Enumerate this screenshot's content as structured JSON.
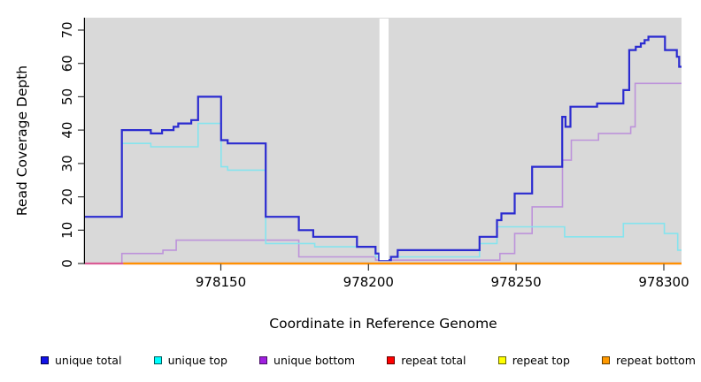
{
  "chart_data": {
    "type": "line",
    "subtype": "step-coverage-plot",
    "title": "",
    "xlabel": "Coordinate in Reference Genome",
    "ylabel": "Read Coverage Depth",
    "xlim": [
      978104,
      978306
    ],
    "ylim": [
      0,
      70
    ],
    "x_ticks": [
      978150,
      978200,
      978250,
      978300
    ],
    "y_ticks": [
      0,
      10,
      20,
      30,
      40,
      50,
      60,
      70
    ],
    "grid": false,
    "plot_bg_color": "#d9d9d9",
    "axis_color": "#000000",
    "gap_mask": {
      "x_start": 978203.7,
      "x_end": 978206.8,
      "color": "#ffffff"
    },
    "legend": {
      "position": "bottom",
      "entries": [
        {
          "label": "unique total",
          "fill": "#1212e8",
          "border": "#00004d"
        },
        {
          "label": "unique top",
          "fill": "#00ffff",
          "border": "#005c5c"
        },
        {
          "label": "unique bottom",
          "fill": "#a01fe0",
          "border": "#470f63"
        },
        {
          "label": "repeat total",
          "fill": "#ff0000",
          "border": "#660000"
        },
        {
          "label": "repeat top",
          "fill": "#ffff00",
          "border": "#666600"
        },
        {
          "label": "repeat bottom",
          "fill": "#ff9900",
          "border": "#663d00"
        }
      ]
    },
    "series": [
      {
        "name": "unique bottom",
        "line_color": "#bd93da",
        "width": 1.6,
        "points": [
          [
            978104,
            0
          ],
          [
            978116.5,
            3
          ],
          [
            978130.4,
            4
          ],
          [
            978134.9,
            7
          ],
          [
            978176.4,
            2
          ],
          [
            978202.4,
            1
          ],
          [
            978244.5,
            3
          ],
          [
            978249.5,
            9
          ],
          [
            978255.4,
            17
          ],
          [
            978265.7,
            31
          ],
          [
            978268.7,
            37
          ],
          [
            978277.9,
            39
          ],
          [
            978288.8,
            41
          ],
          [
            978290.3,
            54
          ],
          [
            978306,
            54
          ]
        ]
      },
      {
        "name": "unique top",
        "line_color": "#85e4ee",
        "width": 1.6,
        "points": [
          [
            978104,
            14
          ],
          [
            978116.5,
            36
          ],
          [
            978126.3,
            35
          ],
          [
            978142.3,
            42
          ],
          [
            978150.1,
            29
          ],
          [
            978152.3,
            28
          ],
          [
            978165.2,
            6
          ],
          [
            978181.8,
            5
          ],
          [
            978202.4,
            2
          ],
          [
            978203.6,
            1
          ],
          [
            978207.6,
            2
          ],
          [
            978237.6,
            6
          ],
          [
            978243.5,
            11
          ],
          [
            978266.4,
            8
          ],
          [
            978286.3,
            12
          ],
          [
            978300.2,
            9
          ],
          [
            978304.7,
            4
          ],
          [
            978306,
            4
          ]
        ]
      },
      {
        "name": "repeat total",
        "line_color": "#da5b95",
        "width": 2.2,
        "points": [
          [
            978104,
            0
          ],
          [
            978306,
            0
          ]
        ]
      },
      {
        "name": "repeat top",
        "line_color": "#f2e641",
        "width": 1.6,
        "points": [
          [
            978117,
            0
          ],
          [
            978306,
            0
          ]
        ]
      },
      {
        "name": "repeat bottom",
        "line_color": "#ff9100",
        "width": 2.2,
        "points": [
          [
            978117,
            0
          ],
          [
            978306,
            0
          ]
        ]
      },
      {
        "name": "unique total",
        "line_color": "#2b2bd0",
        "width": 2.2,
        "points": [
          [
            978104,
            14
          ],
          [
            978116.5,
            40
          ],
          [
            978126.3,
            39
          ],
          [
            978130.1,
            40
          ],
          [
            978134,
            41
          ],
          [
            978135.6,
            42
          ],
          [
            978140,
            43
          ],
          [
            978142.3,
            50
          ],
          [
            978150.1,
            37
          ],
          [
            978152.3,
            36
          ],
          [
            978165.2,
            14
          ],
          [
            978176.4,
            10
          ],
          [
            978181.3,
            8
          ],
          [
            978196.1,
            5
          ],
          [
            978202.4,
            3
          ],
          [
            978203.6,
            1
          ],
          [
            978207.6,
            2
          ],
          [
            978209.9,
            4
          ],
          [
            978237.6,
            8
          ],
          [
            978243.5,
            13
          ],
          [
            978245,
            15
          ],
          [
            978249.5,
            21
          ],
          [
            978255.4,
            29
          ],
          [
            978265.6,
            44
          ],
          [
            978266.7,
            41
          ],
          [
            978268.4,
            47
          ],
          [
            978277.4,
            48
          ],
          [
            978286.3,
            52
          ],
          [
            978288.3,
            64
          ],
          [
            978290.5,
            65
          ],
          [
            978292.2,
            66
          ],
          [
            978293.5,
            67
          ],
          [
            978294.8,
            68
          ],
          [
            978300.4,
            64
          ],
          [
            978304.4,
            62
          ],
          [
            978305.2,
            59
          ],
          [
            978306,
            59
          ]
        ]
      }
    ]
  }
}
